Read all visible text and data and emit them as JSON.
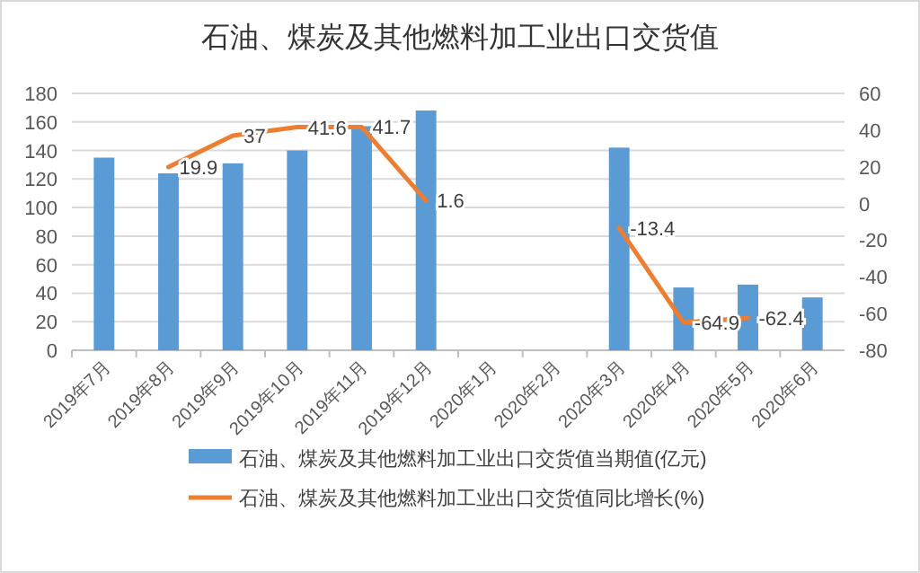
{
  "chart_data": {
    "type": "bar",
    "title": "石油、煤炭及其他燃料加工业出口交货值",
    "categories": [
      "2019年7月",
      "2019年8月",
      "2019年9月",
      "2019年10月",
      "2019年11月",
      "2019年12月",
      "2020年1月",
      "2020年2月",
      "2020年3月",
      "2020年4月",
      "2020年5月",
      "2020年6月"
    ],
    "series": [
      {
        "name": "石油、煤炭及其他燃料加工业出口交货值当期值(亿元)",
        "color": "#5b9bd5",
        "values": [
          135,
          124,
          131,
          140,
          157,
          168,
          null,
          null,
          142,
          44,
          46,
          37
        ]
      },
      {
        "name": "石油、煤炭及其他燃料加工业出口交货值同比增长(%)",
        "type": "line",
        "axis": "y2",
        "color": "#ed7d31",
        "data_labels": true,
        "values": [
          null,
          19.9,
          37,
          41.6,
          41.7,
          1.6,
          null,
          null,
          -13.4,
          -64.9,
          -62.4,
          null
        ]
      }
    ],
    "ylim": [
      0,
      180
    ],
    "yticks": [
      0,
      20,
      40,
      60,
      80,
      100,
      120,
      140,
      160,
      180
    ],
    "y2lim": [
      -80,
      60
    ],
    "y2ticks": [
      -80,
      -60,
      -40,
      -20,
      0,
      20,
      40,
      60
    ],
    "grid": "y",
    "legend": "bottom",
    "marker": "none"
  }
}
